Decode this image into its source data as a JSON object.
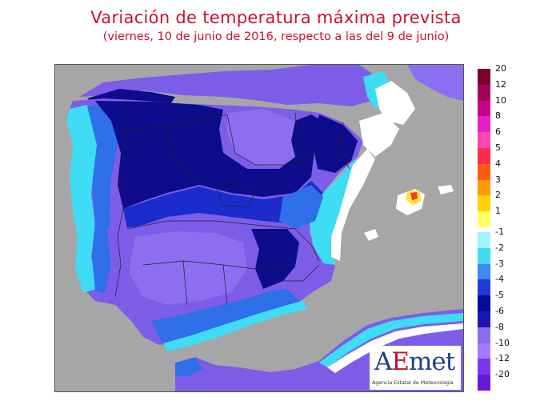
{
  "title": "Variación de temperatura máxima prevista",
  "subtitle": "(viernes, 10 de junio de 2016, respecto a las del 9 de junio)",
  "logo": {
    "mark_a": "A",
    "mark_e": "E",
    "mark_rest": "met",
    "text": "Agencia Estatal de Meteorología"
  },
  "legend": {
    "positive": [
      {
        "label": "20",
        "color": "#7a0030"
      },
      {
        "label": "12",
        "color": "#a3005a"
      },
      {
        "label": "10",
        "color": "#c8008c"
      },
      {
        "label": "8",
        "color": "#e51ec8"
      },
      {
        "label": "6",
        "color": "#ff45b0"
      },
      {
        "label": "5",
        "color": "#ff2a4a"
      },
      {
        "label": "4",
        "color": "#ff5a14"
      },
      {
        "label": "3",
        "color": "#ff9a00"
      },
      {
        "label": "2",
        "color": "#ffd200"
      },
      {
        "label": "1",
        "color": "#ffff66"
      }
    ],
    "negative": [
      {
        "label": "-1",
        "color": "#9ff5ff"
      },
      {
        "label": "-2",
        "color": "#3fdcf5"
      },
      {
        "label": "-3",
        "color": "#3b8cf0"
      },
      {
        "label": "-4",
        "color": "#1f3ad9"
      },
      {
        "label": "-5",
        "color": "#0a0a9a"
      },
      {
        "label": "-6",
        "color": "#1c14b4"
      },
      {
        "label": "-8",
        "color": "#8a6cf2"
      },
      {
        "label": "-10",
        "color": "#a67aff"
      },
      {
        "label": "-12",
        "color": "#7e36ec"
      },
      {
        "label": "-20",
        "color": "#6a18d8"
      }
    ]
  },
  "map_colors": {
    "sea": "#a6a6a6",
    "purple_light": "#8b6ff0",
    "purple": "#7d5de8",
    "navy": "#0c0c8c",
    "blue_dark": "#1a2dcc",
    "blue_mid": "#2f6fea",
    "cyan": "#3fdcf5",
    "cyan_light": "#aef6ff",
    "white": "#ffffff",
    "yellow": "#ffe34d",
    "red": "#ff3a1a"
  }
}
